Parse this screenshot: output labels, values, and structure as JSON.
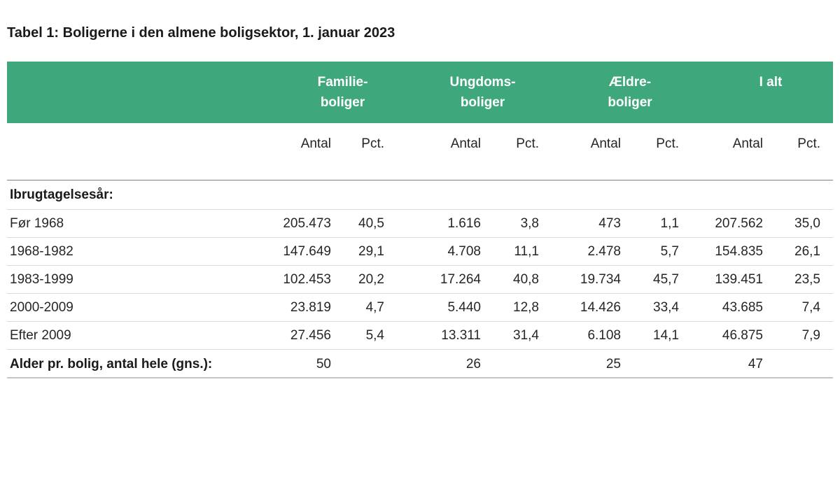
{
  "title": "Tabel 1: Boligerne i den almene boligsektor, 1. januar 2023",
  "colors": {
    "header_bg": "#3EA87C",
    "header_text": "#FFFFFF",
    "body_text": "#262626",
    "row_divider": "#D9D9D9",
    "section_top_divider": "#7F7F7F",
    "bottom_divider": "#C6C6C6"
  },
  "table": {
    "groups": [
      {
        "line1": "Familie-",
        "line2": "boliger"
      },
      {
        "line1": "Ungdoms-",
        "line2": "boliger"
      },
      {
        "line1": "Ældre-",
        "line2": "boliger"
      },
      {
        "line1": "I alt",
        "line2": ""
      }
    ],
    "sub_columns": [
      "Antal",
      "Pct.",
      "Antal",
      "Pct.",
      "Antal",
      "Pct.",
      "Antal",
      "Pct."
    ],
    "section_label": "Ibrugtagelsesår:",
    "rows": [
      {
        "label": "Før 1968",
        "values": [
          "205.473",
          "40,5",
          "1.616",
          "3,8",
          "473",
          "1,1",
          "207.562",
          "35,0"
        ]
      },
      {
        "label": "1968-1982",
        "values": [
          "147.649",
          "29,1",
          "4.708",
          "11,1",
          "2.478",
          "5,7",
          "154.835",
          "26,1"
        ]
      },
      {
        "label": "1983-1999",
        "values": [
          "102.453",
          "20,2",
          "17.264",
          "40,8",
          "19.734",
          "45,7",
          "139.451",
          "23,5"
        ]
      },
      {
        "label": "2000-2009",
        "values": [
          "23.819",
          "4,7",
          "5.440",
          "12,8",
          "14.426",
          "33,4",
          "43.685",
          "7,4"
        ]
      },
      {
        "label": "Efter 2009",
        "values": [
          "27.456",
          "5,4",
          "13.311",
          "31,4",
          "6.108",
          "14,1",
          "46.875",
          "7,9"
        ]
      }
    ],
    "total_row": {
      "label": "Alder pr. bolig, antal hele (gns.):",
      "values": [
        "50",
        "",
        "26",
        "",
        "25",
        "",
        "47",
        ""
      ]
    }
  },
  "chart_data": {
    "type": "table",
    "title": "Tabel 1: Boligerne i den almene boligsektor, 1. januar 2023",
    "column_groups": [
      "Familieboliger",
      "Ungdomsboliger",
      "Ældreboliger",
      "I alt"
    ],
    "measures": [
      "Antal",
      "Pct."
    ],
    "row_section": "Ibrugtagelsesår:",
    "row_labels": [
      "Før 1968",
      "1968-1982",
      "1983-1999",
      "2000-2009",
      "Efter 2009"
    ],
    "antal": {
      "familieboliger": [
        205473,
        147649,
        102453,
        23819,
        27456
      ],
      "ungdomsboliger": [
        1616,
        4708,
        17264,
        5440,
        13311
      ],
      "aeldreboliger": [
        473,
        2478,
        19734,
        14426,
        6108
      ],
      "i_alt": [
        207562,
        154835,
        139451,
        43685,
        46875
      ]
    },
    "pct": {
      "familieboliger": [
        40.5,
        29.1,
        20.2,
        4.7,
        5.4
      ],
      "ungdomsboliger": [
        3.8,
        11.1,
        40.8,
        12.8,
        31.4
      ],
      "aeldreboliger": [
        1.1,
        5.7,
        45.7,
        33.4,
        14.1
      ],
      "i_alt": [
        35.0,
        26.1,
        23.5,
        7.4,
        7.9
      ]
    },
    "avg_age_row": {
      "label": "Alder pr. bolig, antal hele (gns.):",
      "familieboliger": 50,
      "ungdomsboliger": 26,
      "aeldreboliger": 25,
      "i_alt": 47
    }
  }
}
